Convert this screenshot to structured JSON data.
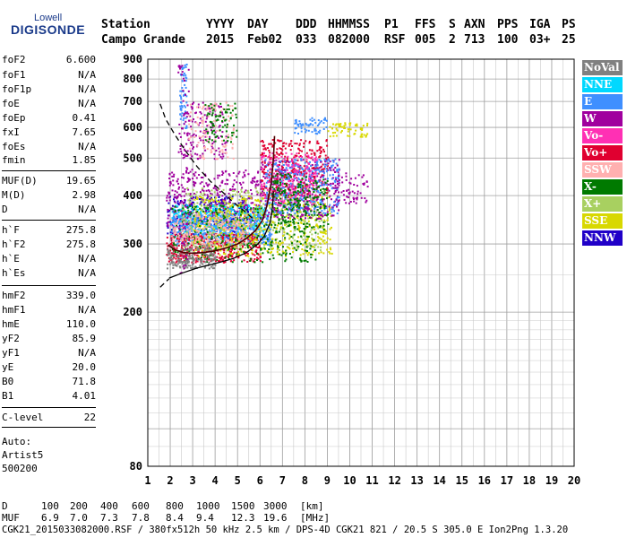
{
  "logo": {
    "top": "Lowell",
    "main": "DIGISONDE"
  },
  "header": {
    "row1": [
      "Station",
      "YYYY",
      "DAY",
      "DDD",
      "HHMMSS",
      "P1",
      "FFS",
      "S",
      "AXN",
      "PPS",
      "IGA",
      "PS"
    ],
    "row2": [
      "Campo Grande",
      "2015",
      "Feb02",
      "033",
      "082000",
      "RSF",
      "005",
      "2",
      "713",
      "100",
      "03+",
      "25"
    ]
  },
  "params": [
    {
      "k": "foF2",
      "v": "6.600"
    },
    {
      "k": "foF1",
      "v": "N/A"
    },
    {
      "k": "foF1p",
      "v": "N/A"
    },
    {
      "k": "foE",
      "v": "N/A"
    },
    {
      "k": "foEp",
      "v": "0.41"
    },
    {
      "k": "fxI",
      "v": "7.65"
    },
    {
      "k": "foEs",
      "v": "N/A"
    },
    {
      "k": "fmin",
      "v": "1.85"
    },
    {
      "k": "MUF(D)",
      "v": "19.65"
    },
    {
      "k": "M(D)",
      "v": "2.98"
    },
    {
      "k": "D",
      "v": "N/A"
    },
    {
      "k": "h`F",
      "v": "275.8"
    },
    {
      "k": "h`F2",
      "v": "275.8"
    },
    {
      "k": "h`E",
      "v": "N/A"
    },
    {
      "k": "h`Es",
      "v": "N/A"
    },
    {
      "k": "hmF2",
      "v": "339.0"
    },
    {
      "k": "hmF1",
      "v": "N/A"
    },
    {
      "k": "hmE",
      "v": "110.0"
    },
    {
      "k": "yF2",
      "v": "85.9"
    },
    {
      "k": "yF1",
      "v": "N/A"
    },
    {
      "k": "yE",
      "v": "20.0"
    },
    {
      "k": "B0",
      "v": "71.8"
    },
    {
      "k": "B1",
      "v": "4.01"
    },
    {
      "k": "C-level",
      "v": "22"
    }
  ],
  "auto": [
    "Auto:",
    "Artist5",
    "500200"
  ],
  "legend": [
    {
      "label": "NoVal",
      "color": "#808080",
      "text": "#ffffff"
    },
    {
      "label": "NNE",
      "color": "#00d8ff",
      "text": "#ffffff"
    },
    {
      "label": "E",
      "color": "#3f8fff",
      "text": "#ffffff"
    },
    {
      "label": "W",
      "color": "#a0009e",
      "text": "#ffffff"
    },
    {
      "label": "Vo-",
      "color": "#ff30b4",
      "text": "#ffffff"
    },
    {
      "label": "Vo+",
      "color": "#e00030",
      "text": "#ffffff"
    },
    {
      "label": "SSW",
      "color": "#ffb0b0",
      "text": "#ffffff"
    },
    {
      "label": "X-",
      "color": "#007a00",
      "text": "#ffffff"
    },
    {
      "label": "X+",
      "color": "#a8d060",
      "text": "#ffffff"
    },
    {
      "label": "SSE",
      "color": "#d8d800",
      "text": "#ffffff"
    },
    {
      "label": "NNW",
      "color": "#2000c8",
      "text": "#ffffff"
    }
  ],
  "chart_data": {
    "type": "scatter",
    "xlim": [
      1,
      20
    ],
    "ylim": [
      80,
      900
    ],
    "yscale": "log",
    "xticks": [
      1,
      2,
      3,
      4,
      5,
      6,
      7,
      8,
      9,
      10,
      11,
      12,
      13,
      14,
      15,
      16,
      17,
      18,
      19,
      20
    ],
    "yticks": [
      80,
      200,
      300,
      400,
      500,
      600,
      700,
      800,
      900
    ],
    "grid": true,
    "traces": [
      {
        "name": "dashed",
        "style": "dashed",
        "x": [
          1.55,
          1.8,
          2.2,
          2.7,
          3.2,
          3.8,
          4.3,
          4.8,
          5.3,
          5.7
        ],
        "y": [
          690,
          630,
          575,
          520,
          475,
          435,
          410,
          385,
          365,
          348
        ]
      },
      {
        "name": "dashed-low",
        "style": "dashed",
        "x": [
          1.55,
          1.75,
          1.95
        ],
        "y": [
          232,
          238,
          244
        ]
      },
      {
        "name": "black",
        "style": "solid",
        "x": [
          1.95,
          2.5,
          3.2,
          4.0,
          4.8,
          5.4,
          5.9,
          6.2,
          6.45,
          6.55,
          6.6
        ],
        "y": [
          245,
          252,
          260,
          267,
          275,
          285,
          300,
          315,
          340,
          370,
          410
        ]
      },
      {
        "name": "trace",
        "style": "solid-dark",
        "x": [
          1.9,
          2.2,
          2.6,
          3.0,
          3.5,
          4.0,
          4.5,
          5.0,
          5.4,
          5.8,
          6.1,
          6.3,
          6.5,
          6.6,
          6.65
        ],
        "y": [
          298,
          290,
          285,
          284,
          285,
          288,
          293,
          300,
          310,
          325,
          345,
          375,
          430,
          500,
          570
        ]
      }
    ],
    "clusters": [
      {
        "color": "#2000c8",
        "x": [
          1.8,
          5.5
        ],
        "y": [
          310,
          400
        ],
        "n": 350
      },
      {
        "color": "#a0009e",
        "x": [
          1.8,
          6.0
        ],
        "y": [
          330,
          470
        ],
        "n": 380
      },
      {
        "color": "#00d8ff",
        "x": [
          2.0,
          6.2
        ],
        "y": [
          310,
          380
        ],
        "n": 420
      },
      {
        "color": "#3f8fff",
        "x": [
          2.0,
          6.5
        ],
        "y": [
          300,
          360
        ],
        "n": 420
      },
      {
        "color": "#e00030",
        "x": [
          1.8,
          6.0
        ],
        "y": [
          270,
          320
        ],
        "n": 420
      },
      {
        "color": "#a8d060",
        "x": [
          2.5,
          9.0
        ],
        "y": [
          290,
          420
        ],
        "n": 480
      },
      {
        "color": "#d8d800",
        "x": [
          3.0,
          9.2
        ],
        "y": [
          280,
          400
        ],
        "n": 450
      },
      {
        "color": "#007a00",
        "x": [
          2.0,
          8.5
        ],
        "y": [
          270,
          380
        ],
        "n": 280
      },
      {
        "color": "#ffb0b0",
        "x": [
          2.0,
          5.5
        ],
        "y": [
          300,
          360
        ],
        "n": 200
      },
      {
        "color": "#808080",
        "x": [
          1.8,
          4.0
        ],
        "y": [
          260,
          300
        ],
        "n": 180
      },
      {
        "color": "#a0009e",
        "x": [
          6.0,
          9.5
        ],
        "y": [
          350,
          500
        ],
        "n": 380
      },
      {
        "color": "#e00030",
        "x": [
          6.0,
          9.0
        ],
        "y": [
          400,
          560
        ],
        "n": 300
      },
      {
        "color": "#3f8fff",
        "x": [
          6.2,
          9.5
        ],
        "y": [
          360,
          500
        ],
        "n": 320
      },
      {
        "color": "#ff30b4",
        "x": [
          6.0,
          8.5
        ],
        "y": [
          380,
          520
        ],
        "n": 200
      },
      {
        "color": "#007a00",
        "x": [
          6.5,
          9.0
        ],
        "y": [
          320,
          460
        ],
        "n": 200
      },
      {
        "color": "#a0009e",
        "x": [
          2.5,
          4.5
        ],
        "y": [
          500,
          700
        ],
        "n": 150
      },
      {
        "color": "#ffb0b0",
        "x": [
          2.8,
          4.8
        ],
        "y": [
          500,
          700
        ],
        "n": 120
      },
      {
        "color": "#007a00",
        "x": [
          3.5,
          5.0
        ],
        "y": [
          550,
          700
        ],
        "n": 80
      },
      {
        "color": "#3f8fff",
        "x": [
          2.4,
          2.7
        ],
        "y": [
          600,
          880
        ],
        "n": 60
      },
      {
        "color": "#a0009e",
        "x": [
          2.3,
          2.8
        ],
        "y": [
          250,
          900
        ],
        "n": 70
      },
      {
        "color": "#d8d800",
        "x": [
          9.0,
          10.8
        ],
        "y": [
          570,
          620
        ],
        "n": 60
      },
      {
        "color": "#a0009e",
        "x": [
          9.3,
          10.8
        ],
        "y": [
          380,
          460
        ],
        "n": 60
      },
      {
        "color": "#3f8fff",
        "x": [
          7.5,
          9.0
        ],
        "y": [
          580,
          640
        ],
        "n": 60
      }
    ]
  },
  "footer": {
    "d_label": "D",
    "d_values": [
      "100",
      "200",
      "400",
      "600",
      "800",
      "1000",
      "1500",
      "3000"
    ],
    "d_unit": "[km]",
    "muf_label": "MUF",
    "muf_values": [
      "6.9",
      "7.0",
      "7.3",
      "7.8",
      "8.4",
      "9.4",
      "12.3",
      "19.6"
    ],
    "muf_unit": "[MHz]",
    "fileline": "CGK21_2015033082000.RSF / 380fx512h 50 kHz 2.5 km / DPS-4D CGK21 821 / 20.5 S 305.0 E Ion2Png 1.3.20"
  }
}
